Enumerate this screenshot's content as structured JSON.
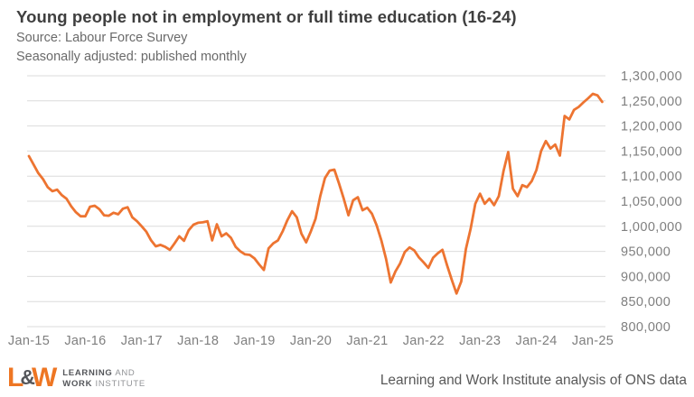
{
  "header": {
    "title": "Young people not in employment or full time education (16-24)",
    "subtitle1": "Source: Labour Force Survey",
    "subtitle2": "Seasonally adjusted: published monthly"
  },
  "footer": {
    "logo": {
      "l": "L",
      "amp": "&",
      "w": "W",
      "line1_bold": "LEARNING",
      "line1_light": " AND",
      "line2_bold": "WORK",
      "line2_light": " INSTITUTE"
    },
    "attribution": "Learning and Work Institute analysis of ONS data"
  },
  "colors": {
    "line": "#ED7431",
    "grid": "#DBDBDB",
    "axis_text": "#7F7F7F",
    "title_text": "#3F3F3F",
    "subtitle_text": "#6A6A6A",
    "footer_text": "#595959",
    "logo_orange": "#EE7623",
    "logo_dark": "#54565A"
  },
  "chart_data": {
    "type": "line",
    "title": "Young people not in employment or full time education (16-24)",
    "xlabel": "",
    "ylabel": "",
    "x_start": "Jan-2015",
    "frequency": "monthly",
    "grid": "horizontal",
    "legend": "none",
    "ylim": [
      800000,
      1300000
    ],
    "y_ticks": [
      1300000,
      1250000,
      1200000,
      1150000,
      1100000,
      1050000,
      1000000,
      950000,
      900000,
      850000,
      800000
    ],
    "x_tick_labels": [
      "Jan-15",
      "Jan-16",
      "Jan-17",
      "Jan-18",
      "Jan-19",
      "Jan-20",
      "Jan-21",
      "Jan-22",
      "Jan-23",
      "Jan-24",
      "Jan-25"
    ],
    "x_tick_month_index": [
      0,
      12,
      24,
      36,
      48,
      60,
      72,
      84,
      96,
      108,
      120
    ],
    "series": [
      {
        "name": "Young people not in employment or full time education (16-24), seasonally adjusted",
        "color": "#ED7431",
        "values": [
          1140000,
          1123000,
          1106000,
          1094000,
          1078000,
          1070000,
          1073000,
          1062000,
          1055000,
          1040000,
          1028000,
          1020000,
          1020000,
          1039000,
          1041000,
          1034000,
          1022000,
          1021000,
          1027000,
          1024000,
          1035000,
          1038000,
          1018000,
          1010000,
          1000000,
          989000,
          972000,
          960000,
          963000,
          959000,
          953000,
          966000,
          980000,
          971000,
          992000,
          1003000,
          1007000,
          1008000,
          1010000,
          972000,
          1004000,
          980000,
          986000,
          977000,
          959000,
          950000,
          944000,
          943000,
          936000,
          924000,
          913000,
          956000,
          966000,
          972000,
          990000,
          1012000,
          1030000,
          1018000,
          985000,
          968000,
          990000,
          1015000,
          1060000,
          1096000,
          1111000,
          1113000,
          1085000,
          1055000,
          1022000,
          1052000,
          1058000,
          1032000,
          1037000,
          1025000,
          1002000,
          972000,
          935000,
          888000,
          910000,
          926000,
          949000,
          958000,
          952000,
          938000,
          928000,
          917000,
          937000,
          946000,
          953000,
          922000,
          893000,
          866000,
          890000,
          955000,
          995000,
          1045000,
          1065000,
          1045000,
          1055000,
          1042000,
          1060000,
          1110000,
          1148000,
          1075000,
          1060000,
          1082000,
          1078000,
          1090000,
          1112000,
          1150000,
          1170000,
          1155000,
          1163000,
          1141000,
          1220000,
          1213000,
          1232000,
          1238000,
          1247000,
          1255000,
          1264000,
          1261000,
          1248000
        ]
      }
    ]
  }
}
